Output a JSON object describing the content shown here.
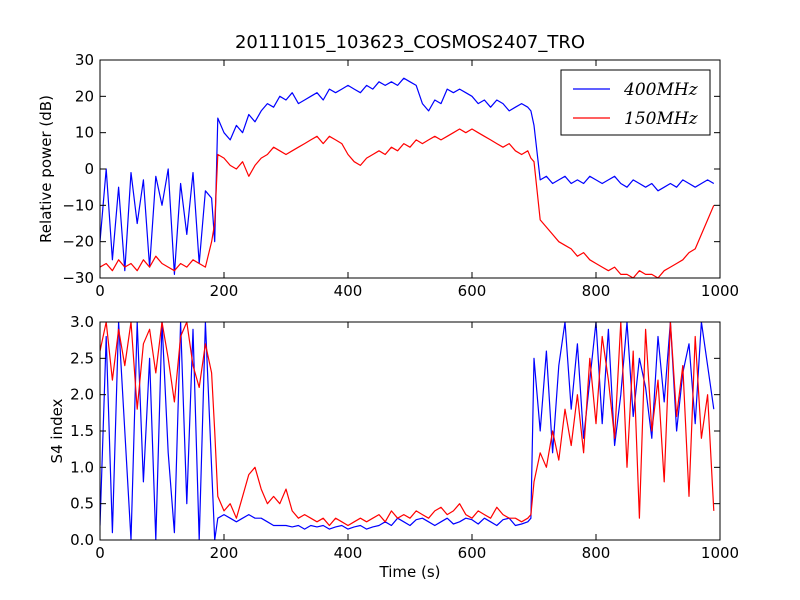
{
  "chart_data": [
    {
      "type": "line",
      "title": "20111015_103623_COSMOS2407_TRO",
      "xlabel": "",
      "ylabel": "Relative power (dB)",
      "xlim": [
        0,
        1000
      ],
      "ylim": [
        -30,
        30
      ],
      "xticks": [
        "0",
        "200",
        "400",
        "600",
        "800",
        "1000"
      ],
      "yticks": [
        "−30",
        "−20",
        "−10",
        "0",
        "10",
        "20",
        "30"
      ],
      "grid": false,
      "legend_position": "top-right",
      "series": [
        {
          "name": "400MHz",
          "color": "#0000ff",
          "x": [
            0,
            10,
            20,
            30,
            40,
            50,
            60,
            70,
            80,
            90,
            100,
            110,
            120,
            130,
            140,
            150,
            160,
            170,
            180,
            185,
            190,
            200,
            210,
            220,
            230,
            240,
            250,
            260,
            270,
            280,
            290,
            300,
            310,
            320,
            330,
            340,
            350,
            360,
            370,
            380,
            390,
            400,
            410,
            420,
            430,
            440,
            450,
            460,
            470,
            480,
            490,
            500,
            510,
            520,
            530,
            540,
            550,
            560,
            570,
            580,
            590,
            600,
            610,
            620,
            630,
            640,
            650,
            660,
            670,
            680,
            690,
            695,
            700,
            710,
            720,
            730,
            740,
            750,
            760,
            770,
            780,
            790,
            800,
            810,
            820,
            830,
            840,
            850,
            860,
            870,
            880,
            890,
            900,
            910,
            920,
            930,
            940,
            950,
            960,
            970,
            980,
            990
          ],
          "y": [
            -20,
            0,
            -25,
            -5,
            -28,
            -1,
            -15,
            -3,
            -27,
            -2,
            -10,
            0,
            -29,
            -4,
            -18,
            -1,
            -26,
            -6,
            -8,
            -20,
            14,
            10,
            8,
            12,
            10,
            15,
            13,
            16,
            18,
            17,
            20,
            19,
            21,
            18,
            19,
            20,
            21,
            19,
            22,
            21,
            22,
            23,
            22,
            21,
            23,
            22,
            24,
            23,
            24,
            23,
            25,
            24,
            23,
            18,
            16,
            19,
            18,
            22,
            21,
            22,
            21,
            20,
            18,
            19,
            17,
            19,
            18,
            16,
            17,
            18,
            17,
            16,
            12,
            -3,
            -2,
            -4,
            -3,
            -2,
            -4,
            -3,
            -4,
            -2,
            -3,
            -4,
            -3,
            -2,
            -4,
            -5,
            -3,
            -4,
            -5,
            -4,
            -6,
            -5,
            -4,
            -5,
            -3,
            -4,
            -5,
            -4,
            -3,
            -4
          ]
        },
        {
          "name": "150MHz",
          "color": "#ff0000",
          "x": [
            0,
            10,
            20,
            30,
            40,
            50,
            60,
            70,
            80,
            90,
            100,
            110,
            120,
            130,
            140,
            150,
            160,
            170,
            180,
            185,
            190,
            200,
            210,
            220,
            230,
            240,
            250,
            260,
            270,
            280,
            290,
            300,
            310,
            320,
            330,
            340,
            350,
            360,
            370,
            380,
            390,
            400,
            410,
            420,
            430,
            440,
            450,
            460,
            470,
            480,
            490,
            500,
            510,
            520,
            530,
            540,
            550,
            560,
            570,
            580,
            590,
            600,
            610,
            620,
            630,
            640,
            650,
            660,
            670,
            680,
            690,
            695,
            700,
            710,
            720,
            730,
            740,
            750,
            760,
            770,
            780,
            790,
            800,
            810,
            820,
            830,
            840,
            850,
            860,
            870,
            880,
            890,
            900,
            910,
            920,
            930,
            940,
            950,
            960,
            970,
            980,
            990
          ],
          "y": [
            -27,
            -26,
            -28,
            -25,
            -27,
            -26,
            -28,
            -25,
            -27,
            -24,
            -26,
            -27,
            -28,
            -26,
            -27,
            -25,
            -26,
            -27,
            -20,
            -15,
            4,
            3,
            1,
            0,
            2,
            -2,
            1,
            3,
            4,
            6,
            5,
            4,
            5,
            6,
            7,
            8,
            9,
            7,
            9,
            8,
            7,
            4,
            2,
            1,
            3,
            4,
            5,
            4,
            6,
            5,
            7,
            6,
            8,
            7,
            8,
            9,
            8,
            9,
            10,
            11,
            10,
            11,
            10,
            9,
            8,
            7,
            6,
            7,
            5,
            4,
            5,
            3,
            2,
            -14,
            -16,
            -18,
            -20,
            -21,
            -22,
            -24,
            -23,
            -25,
            -26,
            -27,
            -28,
            -27,
            -29,
            -29,
            -30,
            -28,
            -29,
            -29,
            -30,
            -28,
            -27,
            -26,
            -25,
            -23,
            -22,
            -18,
            -14,
            -10
          ]
        }
      ]
    },
    {
      "type": "line",
      "title": "",
      "xlabel": "Time (s)",
      "ylabel": "S4 index",
      "xlim": [
        0,
        1000
      ],
      "ylim": [
        0,
        3
      ],
      "xticks": [
        "0",
        "200",
        "400",
        "600",
        "800",
        "1000"
      ],
      "yticks": [
        "0.0",
        "0.5",
        "1.0",
        "1.5",
        "2.0",
        "2.5",
        "3.0"
      ],
      "grid": false,
      "series": [
        {
          "name": "400MHz",
          "color": "#0000ff",
          "x": [
            0,
            10,
            20,
            30,
            40,
            50,
            60,
            70,
            80,
            90,
            100,
            110,
            120,
            130,
            140,
            150,
            160,
            170,
            180,
            185,
            190,
            200,
            210,
            220,
            230,
            240,
            250,
            260,
            270,
            280,
            290,
            300,
            310,
            320,
            330,
            340,
            350,
            360,
            370,
            380,
            390,
            400,
            410,
            420,
            430,
            440,
            450,
            460,
            470,
            480,
            490,
            500,
            510,
            520,
            530,
            540,
            550,
            560,
            570,
            580,
            590,
            600,
            610,
            620,
            630,
            640,
            650,
            660,
            670,
            680,
            690,
            695,
            700,
            710,
            720,
            730,
            740,
            750,
            760,
            770,
            780,
            790,
            800,
            810,
            820,
            830,
            840,
            850,
            860,
            870,
            880,
            890,
            900,
            910,
            920,
            930,
            940,
            950,
            960,
            970,
            980,
            990
          ],
          "y": [
            0.2,
            2.8,
            0.1,
            3.0,
            1.5,
            0.0,
            3.0,
            0.8,
            2.5,
            0.0,
            3.0,
            1.2,
            0.1,
            3.0,
            0.5,
            2.9,
            0.0,
            3.0,
            1.0,
            0.0,
            0.3,
            0.35,
            0.3,
            0.25,
            0.3,
            0.35,
            0.3,
            0.3,
            0.25,
            0.2,
            0.2,
            0.2,
            0.18,
            0.2,
            0.15,
            0.2,
            0.18,
            0.2,
            0.15,
            0.18,
            0.2,
            0.15,
            0.18,
            0.2,
            0.15,
            0.18,
            0.2,
            0.25,
            0.2,
            0.3,
            0.25,
            0.2,
            0.28,
            0.3,
            0.25,
            0.2,
            0.25,
            0.3,
            0.22,
            0.25,
            0.3,
            0.28,
            0.22,
            0.3,
            0.25,
            0.2,
            0.28,
            0.3,
            0.2,
            0.22,
            0.25,
            0.3,
            2.5,
            1.5,
            2.6,
            1.2,
            2.4,
            3.0,
            1.8,
            2.7,
            1.4,
            2.2,
            3.0,
            1.6,
            2.9,
            1.3,
            2.0,
            3.0,
            1.7,
            2.5,
            2.1,
            1.4,
            2.8,
            1.9,
            3.0,
            1.5,
            2.3,
            2.7,
            1.6,
            3.0,
            2.4,
            1.8
          ]
        },
        {
          "name": "150MHz",
          "color": "#ff0000",
          "x": [
            0,
            10,
            20,
            30,
            40,
            50,
            60,
            70,
            80,
            90,
            100,
            110,
            120,
            130,
            140,
            150,
            160,
            170,
            180,
            185,
            190,
            200,
            210,
            220,
            230,
            240,
            250,
            260,
            270,
            280,
            290,
            300,
            310,
            320,
            330,
            340,
            350,
            360,
            370,
            380,
            390,
            400,
            410,
            420,
            430,
            440,
            450,
            460,
            470,
            480,
            490,
            500,
            510,
            520,
            530,
            540,
            550,
            560,
            570,
            580,
            590,
            600,
            610,
            620,
            630,
            640,
            650,
            660,
            670,
            680,
            690,
            695,
            700,
            710,
            720,
            730,
            740,
            750,
            760,
            770,
            780,
            790,
            800,
            810,
            820,
            830,
            840,
            850,
            860,
            870,
            880,
            890,
            900,
            910,
            920,
            930,
            940,
            950,
            960,
            970,
            980,
            990
          ],
          "y": [
            2.6,
            3.0,
            2.2,
            2.9,
            2.4,
            3.0,
            1.8,
            2.7,
            2.9,
            2.3,
            3.0,
            2.5,
            1.9,
            2.8,
            3.0,
            2.4,
            2.1,
            2.7,
            2.3,
            1.5,
            0.6,
            0.4,
            0.5,
            0.3,
            0.6,
            0.9,
            1.0,
            0.7,
            0.5,
            0.6,
            0.5,
            0.7,
            0.4,
            0.3,
            0.35,
            0.3,
            0.25,
            0.3,
            0.2,
            0.3,
            0.25,
            0.2,
            0.25,
            0.3,
            0.25,
            0.3,
            0.35,
            0.25,
            0.4,
            0.3,
            0.35,
            0.3,
            0.4,
            0.35,
            0.3,
            0.4,
            0.45,
            0.35,
            0.4,
            0.5,
            0.35,
            0.3,
            0.4,
            0.35,
            0.3,
            0.45,
            0.35,
            0.3,
            0.3,
            0.25,
            0.3,
            0.35,
            0.8,
            1.2,
            1.0,
            1.5,
            1.1,
            1.8,
            1.3,
            2.0,
            1.2,
            2.5,
            1.6,
            2.8,
            2.2,
            1.4,
            3.0,
            1.0,
            2.6,
            0.3,
            2.9,
            1.5,
            2.2,
            0.8,
            3.0,
            1.7,
            2.4,
            0.6,
            2.8,
            1.4,
            2.0,
            0.4
          ]
        }
      ]
    }
  ]
}
